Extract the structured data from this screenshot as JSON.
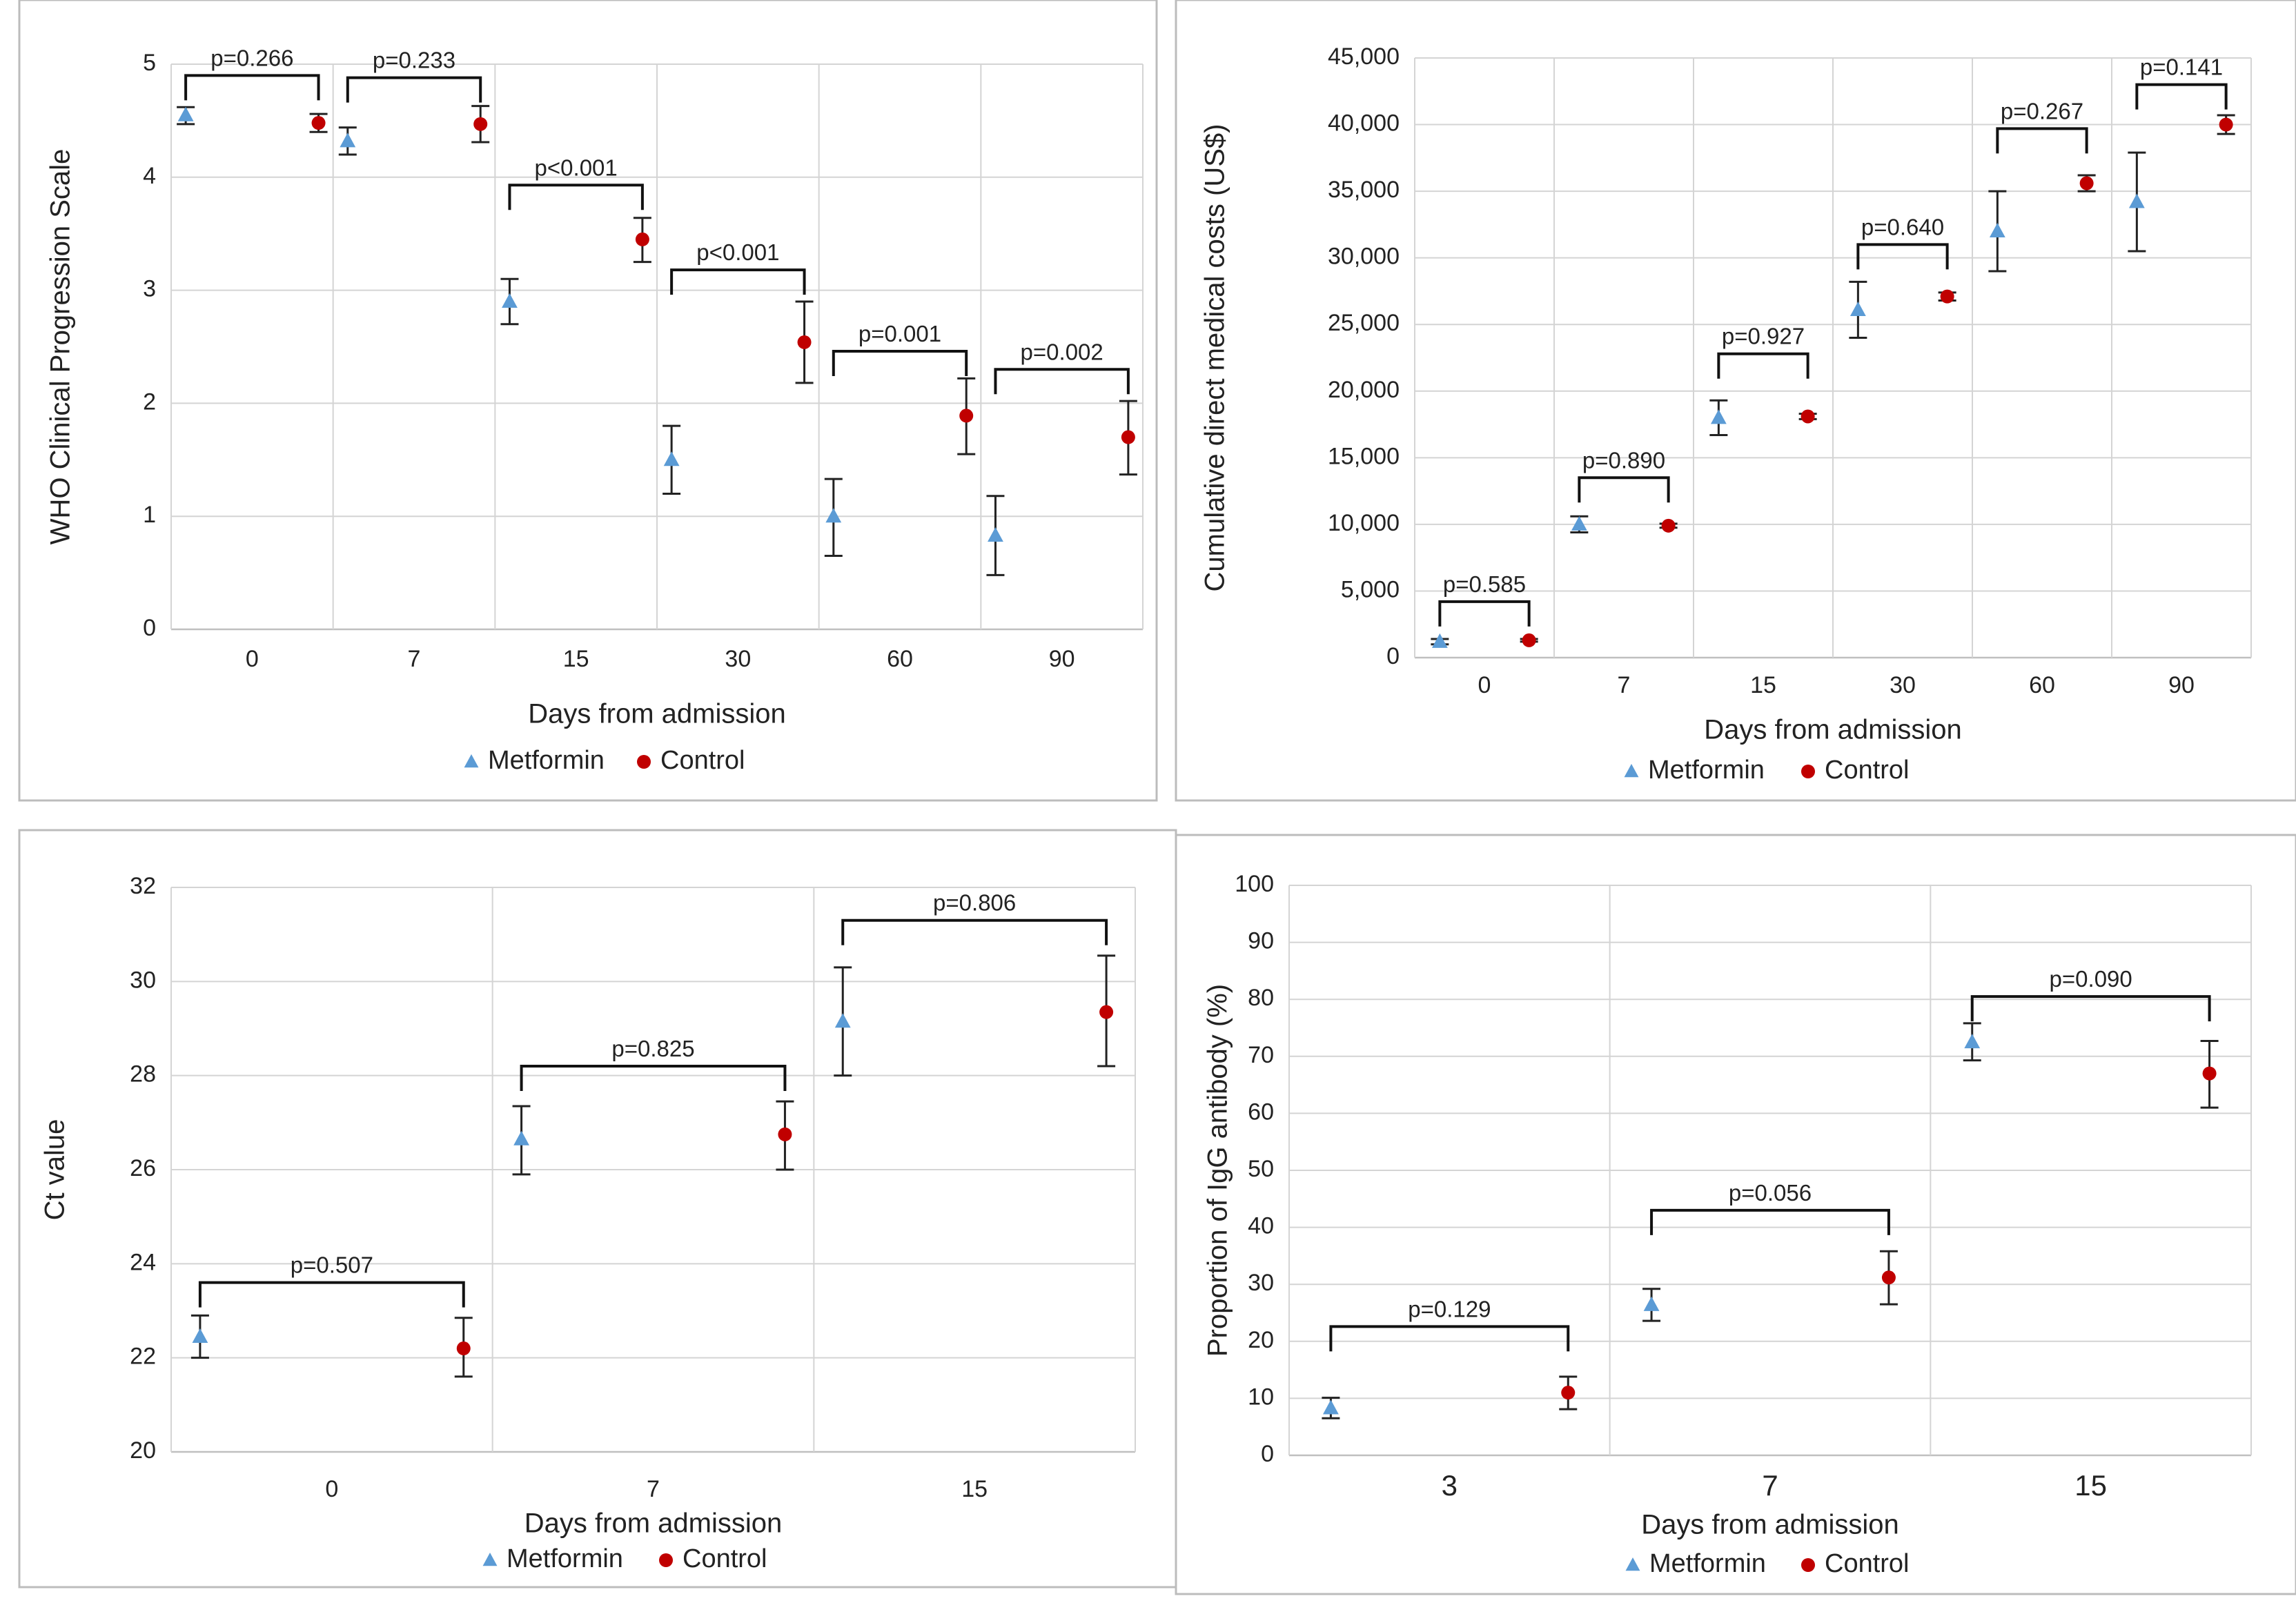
{
  "colors": {
    "metformin": "#5b9bd5",
    "control": "#c00000"
  },
  "chart_data": [
    {
      "type": "scatter",
      "panel": "top-left",
      "xlabel": "Days from admission",
      "ylabel": "WHO Clinical Progression Scale",
      "ylim": [
        0,
        5
      ],
      "yticks": [
        0,
        1,
        2,
        3,
        4,
        5
      ],
      "ytick_labels": [
        "0",
        "1",
        "2",
        "3",
        "4",
        "5"
      ],
      "categories": [
        "0",
        "7",
        "15",
        "30",
        "60",
        "90"
      ],
      "legend": [
        "Metformin",
        "Control"
      ],
      "legend_position": "bottom",
      "series": [
        {
          "name": "Metformin",
          "marker": "triangle",
          "values": [
            4.55,
            4.32,
            2.9,
            1.5,
            1.0,
            0.83
          ],
          "err_low": [
            4.47,
            4.2,
            2.7,
            1.2,
            0.65,
            0.48
          ],
          "err_high": [
            4.62,
            4.44,
            3.1,
            1.8,
            1.33,
            1.18
          ]
        },
        {
          "name": "Control",
          "marker": "circle",
          "values": [
            4.48,
            4.47,
            3.45,
            2.54,
            1.89,
            1.7
          ],
          "err_low": [
            4.4,
            4.31,
            3.25,
            2.18,
            1.55,
            1.37
          ],
          "err_high": [
            4.56,
            4.63,
            3.64,
            2.9,
            2.22,
            2.02
          ]
        }
      ],
      "annotations": [
        {
          "label": "p=0.266",
          "y": 4.9
        },
        {
          "label": "p=0.233",
          "y": 4.88
        },
        {
          "label": "p<0.001",
          "y": 3.93
        },
        {
          "label": "p<0.001",
          "y": 3.18
        },
        {
          "label": "p=0.001",
          "y": 2.46
        },
        {
          "label": "p=0.002",
          "y": 2.3
        }
      ]
    },
    {
      "type": "scatter",
      "panel": "top-right",
      "xlabel": "Days from admission",
      "ylabel": "Cumulative direct medical costs (US$)",
      "ylim": [
        0,
        45000
      ],
      "yticks": [
        0,
        5000,
        10000,
        15000,
        20000,
        25000,
        30000,
        35000,
        40000,
        45000
      ],
      "ytick_labels": [
        "0",
        "5,000",
        "10,000",
        "15,000",
        "20,000",
        "25,000",
        "30,000",
        "35,000",
        "40,000",
        "45,000"
      ],
      "categories": [
        "0",
        "7",
        "15",
        "30",
        "60",
        "90"
      ],
      "legend": [
        "Metformin",
        "Control"
      ],
      "legend_position": "bottom",
      "series": [
        {
          "name": "Metformin",
          "marker": "triangle",
          "values": [
            1200,
            10000,
            18000,
            26100,
            32000,
            34200
          ],
          "err_low": [
            1000,
            9400,
            16700,
            24000,
            29000,
            30500
          ],
          "err_high": [
            1400,
            10600,
            19300,
            28200,
            35000,
            37900
          ]
        },
        {
          "name": "Control",
          "marker": "circle",
          "values": [
            1300,
            9900,
            18100,
            27100,
            35600,
            40000
          ],
          "err_low": [
            1200,
            9750,
            17900,
            26800,
            35000,
            39300
          ],
          "err_high": [
            1400,
            10050,
            18300,
            27400,
            36200,
            40700
          ]
        }
      ],
      "annotations": [
        {
          "label": "p=0.585",
          "y": 4200
        },
        {
          "label": "p=0.890",
          "y": 13500
        },
        {
          "label": "p=0.927",
          "y": 22800
        },
        {
          "label": "p=0.640",
          "y": 31000
        },
        {
          "label": "p=0.267",
          "y": 39700
        },
        {
          "label": "p=0.141",
          "y": 43000
        }
      ]
    },
    {
      "type": "scatter",
      "panel": "bottom-left",
      "xlabel": "Days from admission",
      "ylabel": "Ct value",
      "ylim": [
        20,
        32
      ],
      "yticks": [
        20,
        22,
        24,
        26,
        28,
        30,
        32
      ],
      "ytick_labels": [
        "20",
        "22",
        "24",
        "26",
        "28",
        "30",
        "32"
      ],
      "categories": [
        "0",
        "7",
        "15"
      ],
      "legend": [
        "Metformin",
        "Control"
      ],
      "legend_position": "bottom",
      "series": [
        {
          "name": "Metformin",
          "marker": "triangle",
          "values": [
            22.45,
            26.65,
            29.15
          ],
          "err_low": [
            22.0,
            25.9,
            28.0
          ],
          "err_high": [
            22.9,
            27.35,
            30.3
          ]
        },
        {
          "name": "Control",
          "marker": "circle",
          "values": [
            22.2,
            26.75,
            29.35
          ],
          "err_low": [
            21.6,
            26.0,
            28.2
          ],
          "err_high": [
            22.85,
            27.45,
            30.55
          ]
        }
      ],
      "annotations": [
        {
          "label": "p=0.507",
          "y": 23.6
        },
        {
          "label": "p=0.825",
          "y": 28.2
        },
        {
          "label": "p=0.806",
          "y": 31.3
        }
      ]
    },
    {
      "type": "scatter",
      "panel": "bottom-right",
      "xlabel": "Days from admission",
      "ylabel": "Proportion of IgG antibody (%)",
      "ylim": [
        0,
        100
      ],
      "yticks": [
        0,
        10,
        20,
        30,
        40,
        50,
        60,
        70,
        80,
        90,
        100
      ],
      "ytick_labels": [
        "0",
        "10",
        "20",
        "30",
        "40",
        "50",
        "60",
        "70",
        "80",
        "90",
        "100"
      ],
      "categories": [
        "3",
        "7",
        "15"
      ],
      "legend": [
        "Metformin",
        "Control"
      ],
      "legend_position": "bottom",
      "series": [
        {
          "name": "Metformin",
          "marker": "triangle",
          "values": [
            8.3,
            26.4,
            72.5
          ],
          "err_low": [
            6.5,
            23.6,
            69.3
          ],
          "err_high": [
            10.1,
            29.2,
            75.8
          ]
        },
        {
          "name": "Control",
          "marker": "circle",
          "values": [
            11.0,
            31.2,
            67.0
          ],
          "err_low": [
            8.1,
            26.5,
            61.0
          ],
          "err_high": [
            13.8,
            35.8,
            72.7
          ]
        }
      ],
      "annotations": [
        {
          "label": "p=0.129",
          "y": 22.6
        },
        {
          "label": "p=0.056",
          "y": 43.0
        },
        {
          "label": "p=0.090",
          "y": 80.5
        }
      ]
    }
  ]
}
